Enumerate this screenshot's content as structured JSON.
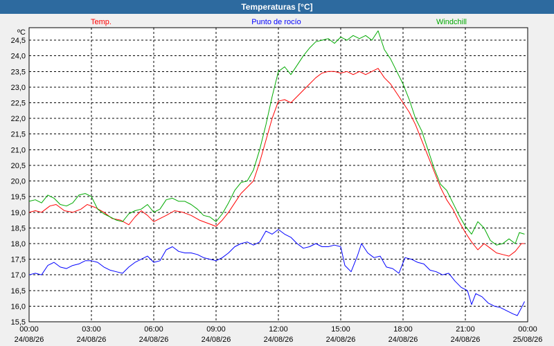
{
  "window": {
    "title": "Temperaturas [°C]"
  },
  "chart_data": {
    "type": "line",
    "ylabel": "ºC",
    "ylim": [
      15.5,
      24.9
    ],
    "y_ticks": [
      "15,5",
      "16,0",
      "16,5",
      "17,0",
      "17,5",
      "18,0",
      "18,5",
      "19,0",
      "19,5",
      "20,0",
      "20,5",
      "21,0",
      "21,5",
      "22,0",
      "22,5",
      "23,0",
      "23,5",
      "24,0",
      "24,5"
    ],
    "x_tick_hours": [
      0,
      3,
      6,
      9,
      12,
      15,
      18,
      21,
      24
    ],
    "x_ticks": [
      {
        "time": "00:00",
        "date": "24/08/26"
      },
      {
        "time": "03:00",
        "date": "24/08/26"
      },
      {
        "time": "06:00",
        "date": "24/08/26"
      },
      {
        "time": "09:00",
        "date": "24/08/26"
      },
      {
        "time": "12:00",
        "date": "24/08/26"
      },
      {
        "time": "15:00",
        "date": "24/08/26"
      },
      {
        "time": "18:00",
        "date": "24/08/26"
      },
      {
        "time": "21:00",
        "date": "24/08/26"
      },
      {
        "time": "00:00",
        "date": "25/08/26"
      }
    ],
    "grid": true,
    "legend_position": "top",
    "series": [
      {
        "name": "Temp.",
        "color": "#ff0000",
        "points": [
          [
            0,
            19.0
          ],
          [
            0.3,
            19.05
          ],
          [
            0.6,
            19.0
          ],
          [
            1.0,
            19.2
          ],
          [
            1.3,
            19.25
          ],
          [
            1.7,
            19.05
          ],
          [
            2.1,
            19.0
          ],
          [
            2.5,
            19.1
          ],
          [
            2.8,
            19.25
          ],
          [
            3.2,
            19.15
          ],
          [
            3.6,
            19.0
          ],
          [
            4.0,
            18.8
          ],
          [
            4.4,
            18.75
          ],
          [
            4.8,
            18.6
          ],
          [
            5.1,
            18.85
          ],
          [
            5.4,
            19.05
          ],
          [
            5.7,
            18.9
          ],
          [
            6.0,
            18.7
          ],
          [
            6.3,
            18.8
          ],
          [
            6.6,
            18.9
          ],
          [
            7.0,
            19.05
          ],
          [
            7.4,
            19.0
          ],
          [
            7.8,
            18.9
          ],
          [
            8.2,
            18.75
          ],
          [
            8.6,
            18.65
          ],
          [
            9.0,
            18.55
          ],
          [
            9.3,
            18.75
          ],
          [
            9.6,
            19.0
          ],
          [
            9.9,
            19.3
          ],
          [
            10.2,
            19.6
          ],
          [
            10.5,
            19.8
          ],
          [
            10.8,
            20.0
          ],
          [
            11.1,
            20.6
          ],
          [
            11.4,
            21.3
          ],
          [
            11.7,
            22.0
          ],
          [
            12.0,
            22.55
          ],
          [
            12.3,
            22.6
          ],
          [
            12.6,
            22.5
          ],
          [
            12.9,
            22.7
          ],
          [
            13.2,
            22.9
          ],
          [
            13.5,
            23.1
          ],
          [
            13.8,
            23.3
          ],
          [
            14.1,
            23.45
          ],
          [
            14.4,
            23.5
          ],
          [
            14.7,
            23.5
          ],
          [
            15.0,
            23.45
          ],
          [
            15.3,
            23.5
          ],
          [
            15.6,
            23.4
          ],
          [
            15.9,
            23.5
          ],
          [
            16.2,
            23.4
          ],
          [
            16.5,
            23.5
          ],
          [
            16.8,
            23.6
          ],
          [
            17.1,
            23.3
          ],
          [
            17.4,
            23.1
          ],
          [
            17.7,
            22.8
          ],
          [
            18.0,
            22.5
          ],
          [
            18.3,
            22.2
          ],
          [
            18.6,
            21.8
          ],
          [
            18.9,
            21.3
          ],
          [
            19.2,
            20.8
          ],
          [
            19.5,
            20.3
          ],
          [
            19.8,
            19.8
          ],
          [
            20.1,
            19.4
          ],
          [
            20.4,
            19.1
          ],
          [
            20.7,
            18.7
          ],
          [
            21.0,
            18.35
          ],
          [
            21.3,
            18.05
          ],
          [
            21.6,
            17.8
          ],
          [
            21.9,
            18.0
          ],
          [
            22.2,
            17.85
          ],
          [
            22.5,
            17.7
          ],
          [
            22.8,
            17.65
          ],
          [
            23.1,
            17.6
          ],
          [
            23.4,
            17.75
          ],
          [
            23.7,
            18.0
          ],
          [
            23.85,
            18.0
          ]
        ]
      },
      {
        "name": "Punto de rocío",
        "color": "#0000ff",
        "points": [
          [
            0,
            17.0
          ],
          [
            0.3,
            17.05
          ],
          [
            0.6,
            17.0
          ],
          [
            0.9,
            17.3
          ],
          [
            1.2,
            17.4
          ],
          [
            1.5,
            17.25
          ],
          [
            1.8,
            17.2
          ],
          [
            2.1,
            17.3
          ],
          [
            2.4,
            17.35
          ],
          [
            2.7,
            17.45
          ],
          [
            3.0,
            17.45
          ],
          [
            3.3,
            17.4
          ],
          [
            3.6,
            17.25
          ],
          [
            3.9,
            17.15
          ],
          [
            4.2,
            17.1
          ],
          [
            4.5,
            17.05
          ],
          [
            4.8,
            17.25
          ],
          [
            5.1,
            17.4
          ],
          [
            5.4,
            17.5
          ],
          [
            5.7,
            17.6
          ],
          [
            6.0,
            17.4
          ],
          [
            6.3,
            17.45
          ],
          [
            6.6,
            17.8
          ],
          [
            6.9,
            17.9
          ],
          [
            7.2,
            17.75
          ],
          [
            7.5,
            17.7
          ],
          [
            7.8,
            17.7
          ],
          [
            8.1,
            17.65
          ],
          [
            8.4,
            17.55
          ],
          [
            8.7,
            17.5
          ],
          [
            9.0,
            17.45
          ],
          [
            9.3,
            17.55
          ],
          [
            9.6,
            17.7
          ],
          [
            9.9,
            17.9
          ],
          [
            10.2,
            18.0
          ],
          [
            10.5,
            18.05
          ],
          [
            10.8,
            17.95
          ],
          [
            11.1,
            18.05
          ],
          [
            11.4,
            18.4
          ],
          [
            11.7,
            18.3
          ],
          [
            12.0,
            18.45
          ],
          [
            12.3,
            18.3
          ],
          [
            12.6,
            18.2
          ],
          [
            12.9,
            18.0
          ],
          [
            13.2,
            17.85
          ],
          [
            13.5,
            17.9
          ],
          [
            13.8,
            18.0
          ],
          [
            14.1,
            17.9
          ],
          [
            14.4,
            17.9
          ],
          [
            14.7,
            17.95
          ],
          [
            15.0,
            17.9
          ],
          [
            15.2,
            17.3
          ],
          [
            15.5,
            17.1
          ],
          [
            15.8,
            17.6
          ],
          [
            16.0,
            18.0
          ],
          [
            16.3,
            17.7
          ],
          [
            16.6,
            17.55
          ],
          [
            16.9,
            17.6
          ],
          [
            17.2,
            17.25
          ],
          [
            17.5,
            17.2
          ],
          [
            17.8,
            17.05
          ],
          [
            18.1,
            17.55
          ],
          [
            18.4,
            17.5
          ],
          [
            18.7,
            17.4
          ],
          [
            19.0,
            17.35
          ],
          [
            19.3,
            17.15
          ],
          [
            19.6,
            17.1
          ],
          [
            19.9,
            17.0
          ],
          [
            20.2,
            17.05
          ],
          [
            20.5,
            16.8
          ],
          [
            20.8,
            16.6
          ],
          [
            21.1,
            16.5
          ],
          [
            21.3,
            16.05
          ],
          [
            21.5,
            16.4
          ],
          [
            21.8,
            16.3
          ],
          [
            22.1,
            16.1
          ],
          [
            22.4,
            16.0
          ],
          [
            22.7,
            15.95
          ],
          [
            23.0,
            15.85
          ],
          [
            23.3,
            15.75
          ],
          [
            23.5,
            15.7
          ],
          [
            23.7,
            15.95
          ],
          [
            23.85,
            16.15
          ]
        ]
      },
      {
        "name": "Windchill",
        "color": "#00aa00",
        "points": [
          [
            0,
            19.35
          ],
          [
            0.3,
            19.4
          ],
          [
            0.6,
            19.3
          ],
          [
            0.9,
            19.55
          ],
          [
            1.2,
            19.45
          ],
          [
            1.5,
            19.25
          ],
          [
            1.8,
            19.2
          ],
          [
            2.1,
            19.3
          ],
          [
            2.4,
            19.55
          ],
          [
            2.7,
            19.6
          ],
          [
            3.0,
            19.5
          ],
          [
            3.3,
            19.1
          ],
          [
            3.6,
            18.95
          ],
          [
            3.9,
            18.85
          ],
          [
            4.2,
            18.75
          ],
          [
            4.5,
            18.7
          ],
          [
            4.8,
            18.95
          ],
          [
            5.1,
            19.05
          ],
          [
            5.4,
            19.1
          ],
          [
            5.7,
            19.25
          ],
          [
            6.0,
            19.0
          ],
          [
            6.3,
            19.1
          ],
          [
            6.6,
            19.4
          ],
          [
            6.9,
            19.45
          ],
          [
            7.2,
            19.35
          ],
          [
            7.5,
            19.35
          ],
          [
            7.8,
            19.25
          ],
          [
            8.1,
            19.1
          ],
          [
            8.4,
            18.9
          ],
          [
            8.7,
            18.85
          ],
          [
            9.0,
            18.7
          ],
          [
            9.3,
            18.95
          ],
          [
            9.6,
            19.3
          ],
          [
            9.9,
            19.7
          ],
          [
            10.2,
            19.95
          ],
          [
            10.5,
            20.0
          ],
          [
            10.8,
            20.35
          ],
          [
            11.1,
            21.0
          ],
          [
            11.4,
            21.8
          ],
          [
            11.7,
            22.7
          ],
          [
            12.0,
            23.5
          ],
          [
            12.3,
            23.65
          ],
          [
            12.6,
            23.4
          ],
          [
            12.9,
            23.7
          ],
          [
            13.2,
            24.0
          ],
          [
            13.5,
            24.25
          ],
          [
            13.8,
            24.45
          ],
          [
            14.1,
            24.5
          ],
          [
            14.4,
            24.55
          ],
          [
            14.7,
            24.4
          ],
          [
            15.0,
            24.6
          ],
          [
            15.3,
            24.5
          ],
          [
            15.6,
            24.65
          ],
          [
            15.9,
            24.55
          ],
          [
            16.2,
            24.65
          ],
          [
            16.5,
            24.5
          ],
          [
            16.8,
            24.8
          ],
          [
            17.1,
            24.2
          ],
          [
            17.4,
            23.9
          ],
          [
            17.7,
            23.5
          ],
          [
            18.0,
            23.1
          ],
          [
            18.3,
            22.6
          ],
          [
            18.6,
            22.0
          ],
          [
            18.9,
            21.6
          ],
          [
            19.2,
            21.0
          ],
          [
            19.5,
            20.4
          ],
          [
            19.8,
            19.9
          ],
          [
            20.1,
            19.7
          ],
          [
            20.4,
            19.3
          ],
          [
            20.7,
            18.9
          ],
          [
            21.0,
            18.55
          ],
          [
            21.3,
            18.3
          ],
          [
            21.6,
            18.7
          ],
          [
            21.9,
            18.5
          ],
          [
            22.2,
            18.1
          ],
          [
            22.5,
            17.95
          ],
          [
            22.8,
            18.0
          ],
          [
            23.1,
            18.15
          ],
          [
            23.4,
            18.0
          ],
          [
            23.6,
            18.35
          ],
          [
            23.85,
            18.3
          ]
        ]
      }
    ]
  }
}
